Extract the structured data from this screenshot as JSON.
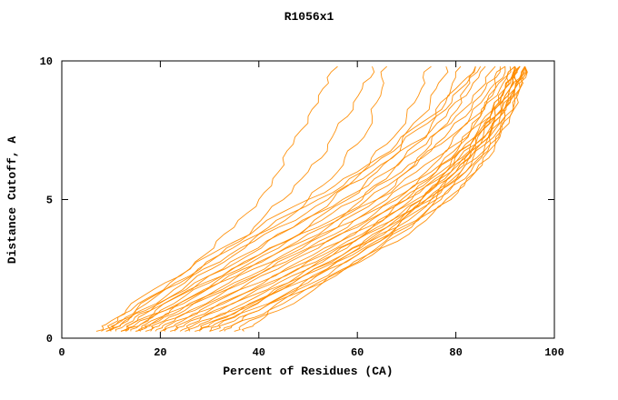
{
  "chart_data": {
    "type": "line",
    "title": "R1056x1",
    "xlabel": "Percent of Residues (CA)",
    "ylabel": "Distance Cutoff, A",
    "xlim": [
      0,
      100
    ],
    "ylim": [
      0,
      10
    ],
    "x_ticks": [
      0,
      20,
      40,
      60,
      80,
      100
    ],
    "y_ticks": [
      0,
      5,
      10
    ],
    "grid": "off",
    "legend": "none",
    "line_color": "#FF8C00",
    "frame_color": "#000000",
    "y_grid": [
      0.25,
      0.5,
      1,
      2,
      3,
      4,
      5,
      6,
      7,
      8,
      9,
      9.8
    ],
    "series": [
      [
        8,
        10,
        14,
        22,
        29,
        35,
        40,
        44,
        47,
        50,
        53,
        56
      ],
      [
        9,
        11,
        15,
        24,
        32,
        39,
        45,
        50,
        54,
        58,
        61,
        63
      ],
      [
        10,
        12,
        17,
        26,
        35,
        43,
        50,
        56,
        60,
        63,
        65,
        66
      ],
      [
        7,
        9,
        13,
        21,
        30,
        40,
        50,
        60,
        68,
        75,
        80,
        84
      ],
      [
        10,
        12,
        16,
        25,
        34,
        44,
        54,
        63,
        71,
        78,
        83,
        86
      ],
      [
        12,
        14,
        18,
        27,
        37,
        47,
        57,
        66,
        74,
        80,
        85,
        88
      ],
      [
        13,
        15,
        20,
        30,
        40,
        50,
        60,
        69,
        76,
        82,
        86,
        89
      ],
      [
        14,
        16,
        21,
        31,
        41,
        52,
        62,
        70,
        77,
        83,
        87,
        90
      ],
      [
        15,
        17,
        22,
        32,
        43,
        54,
        64,
        72,
        79,
        84,
        88,
        91
      ],
      [
        16,
        18,
        23,
        34,
        45,
        56,
        66,
        74,
        80,
        85,
        89,
        92
      ],
      [
        17,
        19,
        25,
        36,
        47,
        58,
        67,
        75,
        81,
        86,
        90,
        93
      ],
      [
        18,
        20,
        26,
        37,
        48,
        59,
        68,
        76,
        82,
        87,
        90,
        92
      ],
      [
        19,
        21,
        27,
        38,
        49,
        60,
        69,
        77,
        83,
        87,
        91,
        93
      ],
      [
        20,
        22,
        28,
        40,
        51,
        61,
        70,
        78,
        83,
        88,
        91,
        94
      ],
      [
        21,
        23,
        29,
        41,
        52,
        62,
        71,
        78,
        84,
        88,
        91,
        93
      ],
      [
        22,
        24,
        30,
        42,
        53,
        63,
        72,
        79,
        84,
        88,
        92,
        94
      ],
      [
        23,
        25,
        31,
        43,
        54,
        64,
        73,
        80,
        85,
        89,
        92,
        94
      ],
      [
        24,
        26,
        32,
        44,
        55,
        65,
        74,
        80,
        85,
        89,
        92,
        93
      ],
      [
        25,
        27,
        34,
        46,
        57,
        67,
        75,
        81,
        86,
        89,
        92,
        94
      ],
      [
        26,
        28,
        35,
        47,
        58,
        68,
        75,
        82,
        86,
        90,
        92,
        93
      ],
      [
        27,
        29,
        36,
        48,
        59,
        68,
        76,
        82,
        87,
        90,
        93,
        94
      ],
      [
        28,
        31,
        38,
        50,
        60,
        69,
        77,
        83,
        87,
        90,
        92,
        94
      ],
      [
        30,
        33,
        40,
        52,
        62,
        71,
        78,
        84,
        88,
        91,
        93,
        94
      ],
      [
        32,
        35,
        42,
        53,
        63,
        72,
        79,
        84,
        88,
        91,
        93,
        94
      ],
      [
        11,
        13,
        18,
        28,
        38,
        47,
        55,
        61,
        66,
        70,
        73,
        75
      ],
      [
        12,
        14,
        19,
        29,
        40,
        50,
        58,
        64,
        69,
        73,
        76,
        78
      ],
      [
        13,
        16,
        21,
        32,
        43,
        53,
        61,
        67,
        72,
        76,
        79,
        81
      ],
      [
        15,
        18,
        24,
        35,
        46,
        56,
        64,
        70,
        75,
        79,
        82,
        84
      ],
      [
        30,
        32,
        37,
        46,
        55,
        63,
        70,
        76,
        81,
        85,
        88,
        90
      ],
      [
        33,
        35,
        40,
        49,
        58,
        66,
        73,
        78,
        83,
        87,
        90,
        92
      ],
      [
        35,
        37,
        42,
        51,
        60,
        68,
        74,
        80,
        84,
        88,
        90,
        92
      ],
      [
        37,
        39,
        44,
        53,
        62,
        70,
        76,
        81,
        85,
        88,
        91,
        93
      ],
      [
        9,
        11,
        15,
        23,
        32,
        42,
        52,
        61,
        69,
        76,
        81,
        85
      ],
      [
        28,
        30,
        36,
        47,
        57,
        66,
        73,
        79,
        84,
        87,
        90,
        92
      ]
    ]
  }
}
